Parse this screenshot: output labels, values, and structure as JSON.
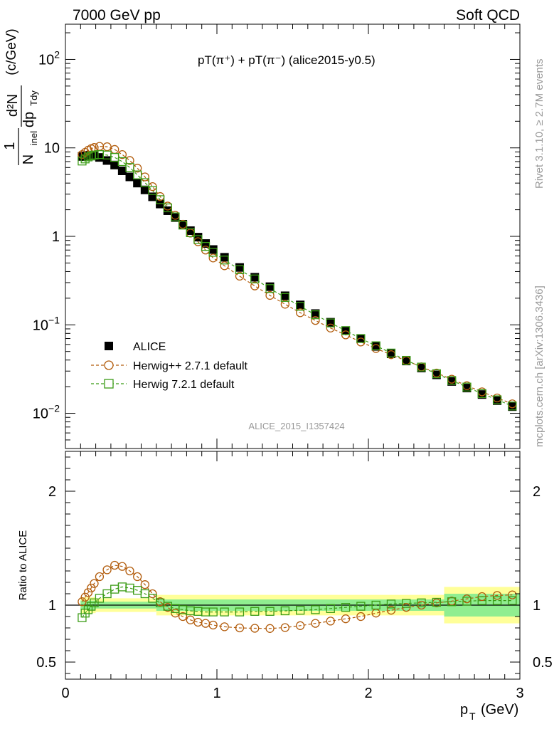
{
  "header": {
    "left": "7000 GeV pp",
    "right": "Soft QCD"
  },
  "side_labels": {
    "rivet": "Rivet 3.1.10, ≥ 2.7M events",
    "mcplots": "mcplots.cern.ch [arXiv:1306.3436]"
  },
  "watermark": "ALICE_2015_I1357424",
  "chart_data": [
    {
      "type": "scatter",
      "panel": "main",
      "title": "pT(π⁺) + pT(π⁻) (alice2015-y0.5)",
      "xlabel": "",
      "ylabel_parts": {
        "one": "1",
        "n": "N",
        "inel": "inel",
        "d2n": "d²N",
        "dp": "dp",
        "tdy": "Tdy",
        "unit": "(c/GeV)"
      },
      "y_scale": "log",
      "ylim": [
        0.004,
        250
      ],
      "xlim": [
        0,
        3
      ],
      "y_tick_labels": [
        {
          "value": 0.01,
          "base": "10",
          "exp": "−2"
        },
        {
          "value": 0.1,
          "base": "10",
          "exp": "−1"
        },
        {
          "value": 1,
          "base": "1",
          "exp": ""
        },
        {
          "value": 10,
          "base": "10",
          "exp": ""
        },
        {
          "value": 100,
          "base": "10",
          "exp": "2"
        }
      ],
      "legend": {
        "position": "lower-left",
        "entries": [
          {
            "label": "ALICE",
            "marker": "filled-square",
            "color": "#000000"
          },
          {
            "label": "Herwig++ 2.7.1 default",
            "marker": "open-circle",
            "color": "#b25c0c"
          },
          {
            "label": "Herwig 7.2.1 default",
            "marker": "open-square",
            "color": "#3b9c16"
          }
        ]
      },
      "x": [
        0.11,
        0.13,
        0.15,
        0.17,
        0.19,
        0.225,
        0.275,
        0.325,
        0.375,
        0.425,
        0.475,
        0.525,
        0.575,
        0.625,
        0.675,
        0.725,
        0.775,
        0.825,
        0.875,
        0.925,
        0.975,
        1.05,
        1.15,
        1.25,
        1.35,
        1.45,
        1.55,
        1.65,
        1.75,
        1.85,
        1.95,
        2.05,
        2.15,
        2.25,
        2.35,
        2.45,
        2.55,
        2.65,
        2.75,
        2.85,
        2.95
      ],
      "series": [
        {
          "name": "ALICE",
          "values": [
            8.0,
            8.1,
            8.2,
            8.2,
            8.1,
            7.8,
            7.2,
            6.4,
            5.5,
            4.7,
            4.0,
            3.35,
            2.8,
            2.32,
            1.95,
            1.63,
            1.37,
            1.16,
            0.98,
            0.83,
            0.71,
            0.58,
            0.445,
            0.345,
            0.27,
            0.213,
            0.168,
            0.134,
            0.107,
            0.086,
            0.07,
            0.057,
            0.047,
            0.039,
            0.0325,
            0.0272,
            0.0229,
            0.0193,
            0.0163,
            0.0139,
            0.0119
          ]
        },
        {
          "name": "Herwig++ 2.7.1 default",
          "values": [
            8.4,
            8.9,
            9.4,
            9.8,
            10.1,
            10.4,
            10.3,
            9.6,
            8.4,
            7.2,
            5.9,
            4.7,
            3.65,
            2.82,
            2.2,
            1.73,
            1.37,
            1.09,
            0.87,
            0.7,
            0.57,
            0.465,
            0.355,
            0.275,
            0.215,
            0.171,
            0.137,
            0.112,
            0.092,
            0.077,
            0.064,
            0.054,
            0.046,
            0.0393,
            0.0335,
            0.0285,
            0.0243,
            0.0205,
            0.0175,
            0.0149,
            0.0128
          ]
        },
        {
          "name": "Herwig 7.2.1 default",
          "values": [
            7.1,
            7.5,
            7.9,
            8.1,
            8.3,
            8.4,
            8.3,
            7.8,
            7.0,
            6.0,
            4.95,
            4.05,
            3.3,
            2.6,
            2.1,
            1.66,
            1.34,
            1.1,
            0.92,
            0.77,
            0.66,
            0.54,
            0.42,
            0.33,
            0.257,
            0.204,
            0.162,
            0.13,
            0.105,
            0.086,
            0.07,
            0.058,
            0.048,
            0.0397,
            0.0333,
            0.028,
            0.0235,
            0.0198,
            0.0167,
            0.0142,
            0.0121
          ]
        }
      ]
    },
    {
      "type": "scatter",
      "panel": "ratio",
      "xlabel_parts": {
        "p": "p",
        "sub": "T",
        "unit": "(GeV)"
      },
      "ylabel": "Ratio to ALICE",
      "ylim": [
        0.35,
        2.35
      ],
      "xlim": [
        0,
        3
      ],
      "y_tick_labels": [
        "0.5",
        "1",
        "2"
      ],
      "y_tick_values": [
        0.5,
        1,
        2
      ],
      "x_tick_labels": [
        "0",
        "1",
        "2",
        "3"
      ],
      "x_tick_values": [
        0,
        1,
        2,
        3
      ],
      "x": [
        0.11,
        0.13,
        0.15,
        0.17,
        0.19,
        0.225,
        0.275,
        0.325,
        0.375,
        0.425,
        0.475,
        0.525,
        0.575,
        0.625,
        0.675,
        0.725,
        0.775,
        0.825,
        0.875,
        0.925,
        0.975,
        1.05,
        1.15,
        1.25,
        1.35,
        1.45,
        1.55,
        1.65,
        1.75,
        1.85,
        1.95,
        2.05,
        2.15,
        2.25,
        2.35,
        2.45,
        2.55,
        2.65,
        2.75,
        2.85,
        2.95
      ],
      "series": [
        {
          "name": "Herwig++ 2.7.1 default",
          "values": [
            1.03,
            1.07,
            1.11,
            1.15,
            1.19,
            1.25,
            1.31,
            1.35,
            1.34,
            1.3,
            1.25,
            1.18,
            1.1,
            1.03,
            0.98,
            0.93,
            0.9,
            0.87,
            0.85,
            0.84,
            0.825,
            0.81,
            0.8,
            0.797,
            0.795,
            0.803,
            0.82,
            0.84,
            0.86,
            0.88,
            0.9,
            0.93,
            0.955,
            0.98,
            1.0,
            1.02,
            1.035,
            1.055,
            1.075,
            1.085,
            1.09
          ]
        },
        {
          "name": "Herwig 7.2.1 default",
          "values": [
            0.89,
            0.93,
            0.96,
            0.99,
            1.02,
            1.06,
            1.1,
            1.14,
            1.16,
            1.15,
            1.13,
            1.1,
            1.06,
            1.02,
            0.99,
            0.97,
            0.96,
            0.95,
            0.945,
            0.94,
            0.94,
            0.94,
            0.94,
            0.945,
            0.945,
            0.95,
            0.955,
            0.96,
            0.97,
            0.98,
            0.99,
            1.0,
            1.01,
            1.015,
            1.02,
            1.025,
            1.03,
            1.035,
            1.04,
            1.04,
            1.04
          ]
        }
      ],
      "bands": {
        "green_color": "#90ee90",
        "yellow_color": "#ffff99",
        "segments": [
          {
            "x0": 0.1,
            "x1": 0.2,
            "green": 0.04,
            "yellow": 0.07
          },
          {
            "x0": 0.2,
            "x1": 0.6,
            "green": 0.03,
            "yellow": 0.06
          },
          {
            "x0": 0.6,
            "x1": 2.5,
            "green": 0.05,
            "yellow": 0.09
          },
          {
            "x0": 2.5,
            "x1": 3.0,
            "green": 0.1,
            "yellow": 0.16
          }
        ]
      }
    }
  ]
}
